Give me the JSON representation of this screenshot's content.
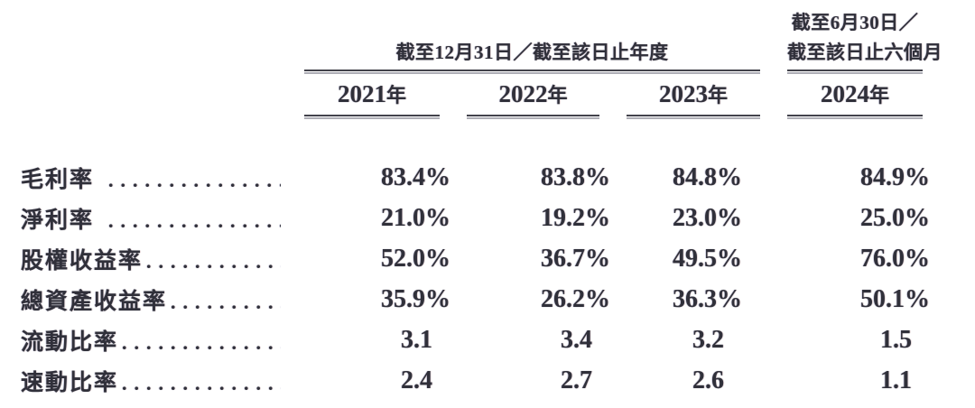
{
  "document": {
    "background": "#ffffff",
    "ink_color": "#30303a",
    "rule_color": "#43434c",
    "rule_ghost_color": "#aeaeb6"
  },
  "table": {
    "leader": "..........................",
    "header": {
      "group1": {
        "title": "截至12月31日／截至該日止年度"
      },
      "group2": {
        "title_line1": "截至6月30日／",
        "title_line2": "截至該日止六個月"
      },
      "years": [
        {
          "digits": "2021",
          "suffix": "年"
        },
        {
          "digits": "2022",
          "suffix": "年"
        },
        {
          "digits": "2023",
          "suffix": "年"
        },
        {
          "digits": "2024",
          "suffix": "年"
        }
      ]
    },
    "rows": [
      {
        "label": "毛利率",
        "values": [
          "83.4%",
          "83.8%",
          "84.8%",
          "84.9%"
        ]
      },
      {
        "label": "淨利率",
        "values": [
          "21.0%",
          "19.2%",
          "23.0%",
          "25.0%"
        ]
      },
      {
        "label": "股權收益率",
        "values": [
          "52.0%",
          "36.7%",
          "49.5%",
          "76.0%"
        ]
      },
      {
        "label": "總資產收益率",
        "values": [
          "35.9%",
          "26.2%",
          "36.3%",
          "50.1%"
        ]
      },
      {
        "label": "流動比率",
        "values": [
          "3.1",
          "3.4",
          "3.2",
          "1.5"
        ]
      },
      {
        "label": "速動比率",
        "values": [
          "2.4",
          "2.7",
          "2.6",
          "1.1"
        ]
      }
    ]
  },
  "chart_data": {
    "type": "table",
    "title": "",
    "column_groups": [
      {
        "title": "截至12月31日／截至該日止年度",
        "columns": [
          "2021年",
          "2022年",
          "2023年"
        ]
      },
      {
        "title": "截至6月30日／截至該日止六個月",
        "columns": [
          "2024年"
        ]
      }
    ],
    "row_labels": [
      "毛利率",
      "淨利率",
      "股權收益率",
      "總資產收益率",
      "流動比率",
      "速動比率"
    ],
    "cells": [
      [
        "83.4%",
        "83.8%",
        "84.8%",
        "84.9%"
      ],
      [
        "21.0%",
        "19.2%",
        "23.0%",
        "25.0%"
      ],
      [
        "52.0%",
        "36.7%",
        "49.5%",
        "76.0%"
      ],
      [
        "35.9%",
        "26.2%",
        "36.3%",
        "50.1%"
      ],
      [
        "3.1",
        "3.4",
        "3.2",
        "1.5"
      ],
      [
        "2.4",
        "2.7",
        "2.6",
        "1.1"
      ]
    ]
  }
}
